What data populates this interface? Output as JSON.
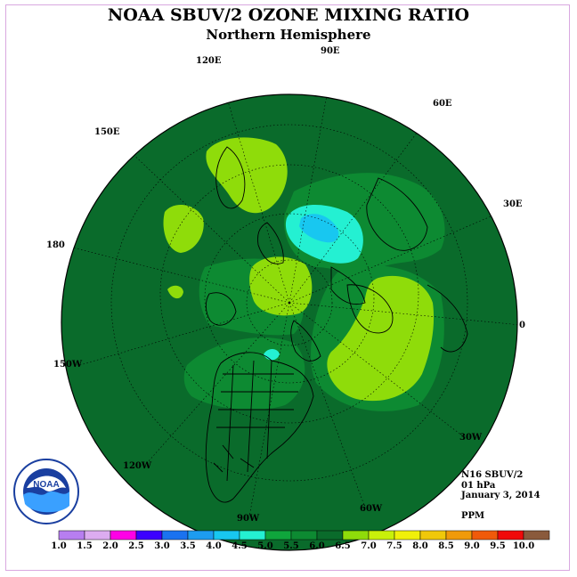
{
  "title": "NOAA SBUV/2 OZONE MIXING RATIO",
  "subtitle": "Northern Hemisphere",
  "longitude_labels": [
    "90E",
    "60E",
    "30E",
    "0",
    "30W",
    "60W",
    "90W",
    "120W",
    "150W",
    "180",
    "150E",
    "120E"
  ],
  "info": {
    "instrument": "N16 SBUV/2",
    "level": "01 hPa",
    "date": "January 3, 2014",
    "units": "PPM"
  },
  "logo_text": "NOAA",
  "colorbar": {
    "labels": [
      "1.0",
      "1.5",
      "2.0",
      "2.5",
      "3.0",
      "3.5",
      "4.0",
      "4.5",
      "5.0",
      "5.5",
      "6.0",
      "6.5",
      "7.0",
      "7.5",
      "8.0",
      "8.5",
      "9.0",
      "9.5",
      "10.0"
    ],
    "colors": [
      "#b77ef0",
      "#dcacf0",
      "#ff00e6",
      "#3c00ff",
      "#1a72f0",
      "#1d9cf0",
      "#18c7f0",
      "#24f0d2",
      "#0fa63c",
      "#0d8a32",
      "#0a6b2b",
      "#8fdc0a",
      "#c8f00a",
      "#f0f00a",
      "#f0c80a",
      "#f09a0a",
      "#f05a0a",
      "#f00a0a",
      "#8a5a3c"
    ]
  },
  "map_colors": {
    "background": "#0a6b2b",
    "band_5_5": "#0d8a32",
    "band_6_5": "#8fdc0a",
    "band_4_5": "#24f0d2",
    "band_4_0": "#18c7f0"
  }
}
